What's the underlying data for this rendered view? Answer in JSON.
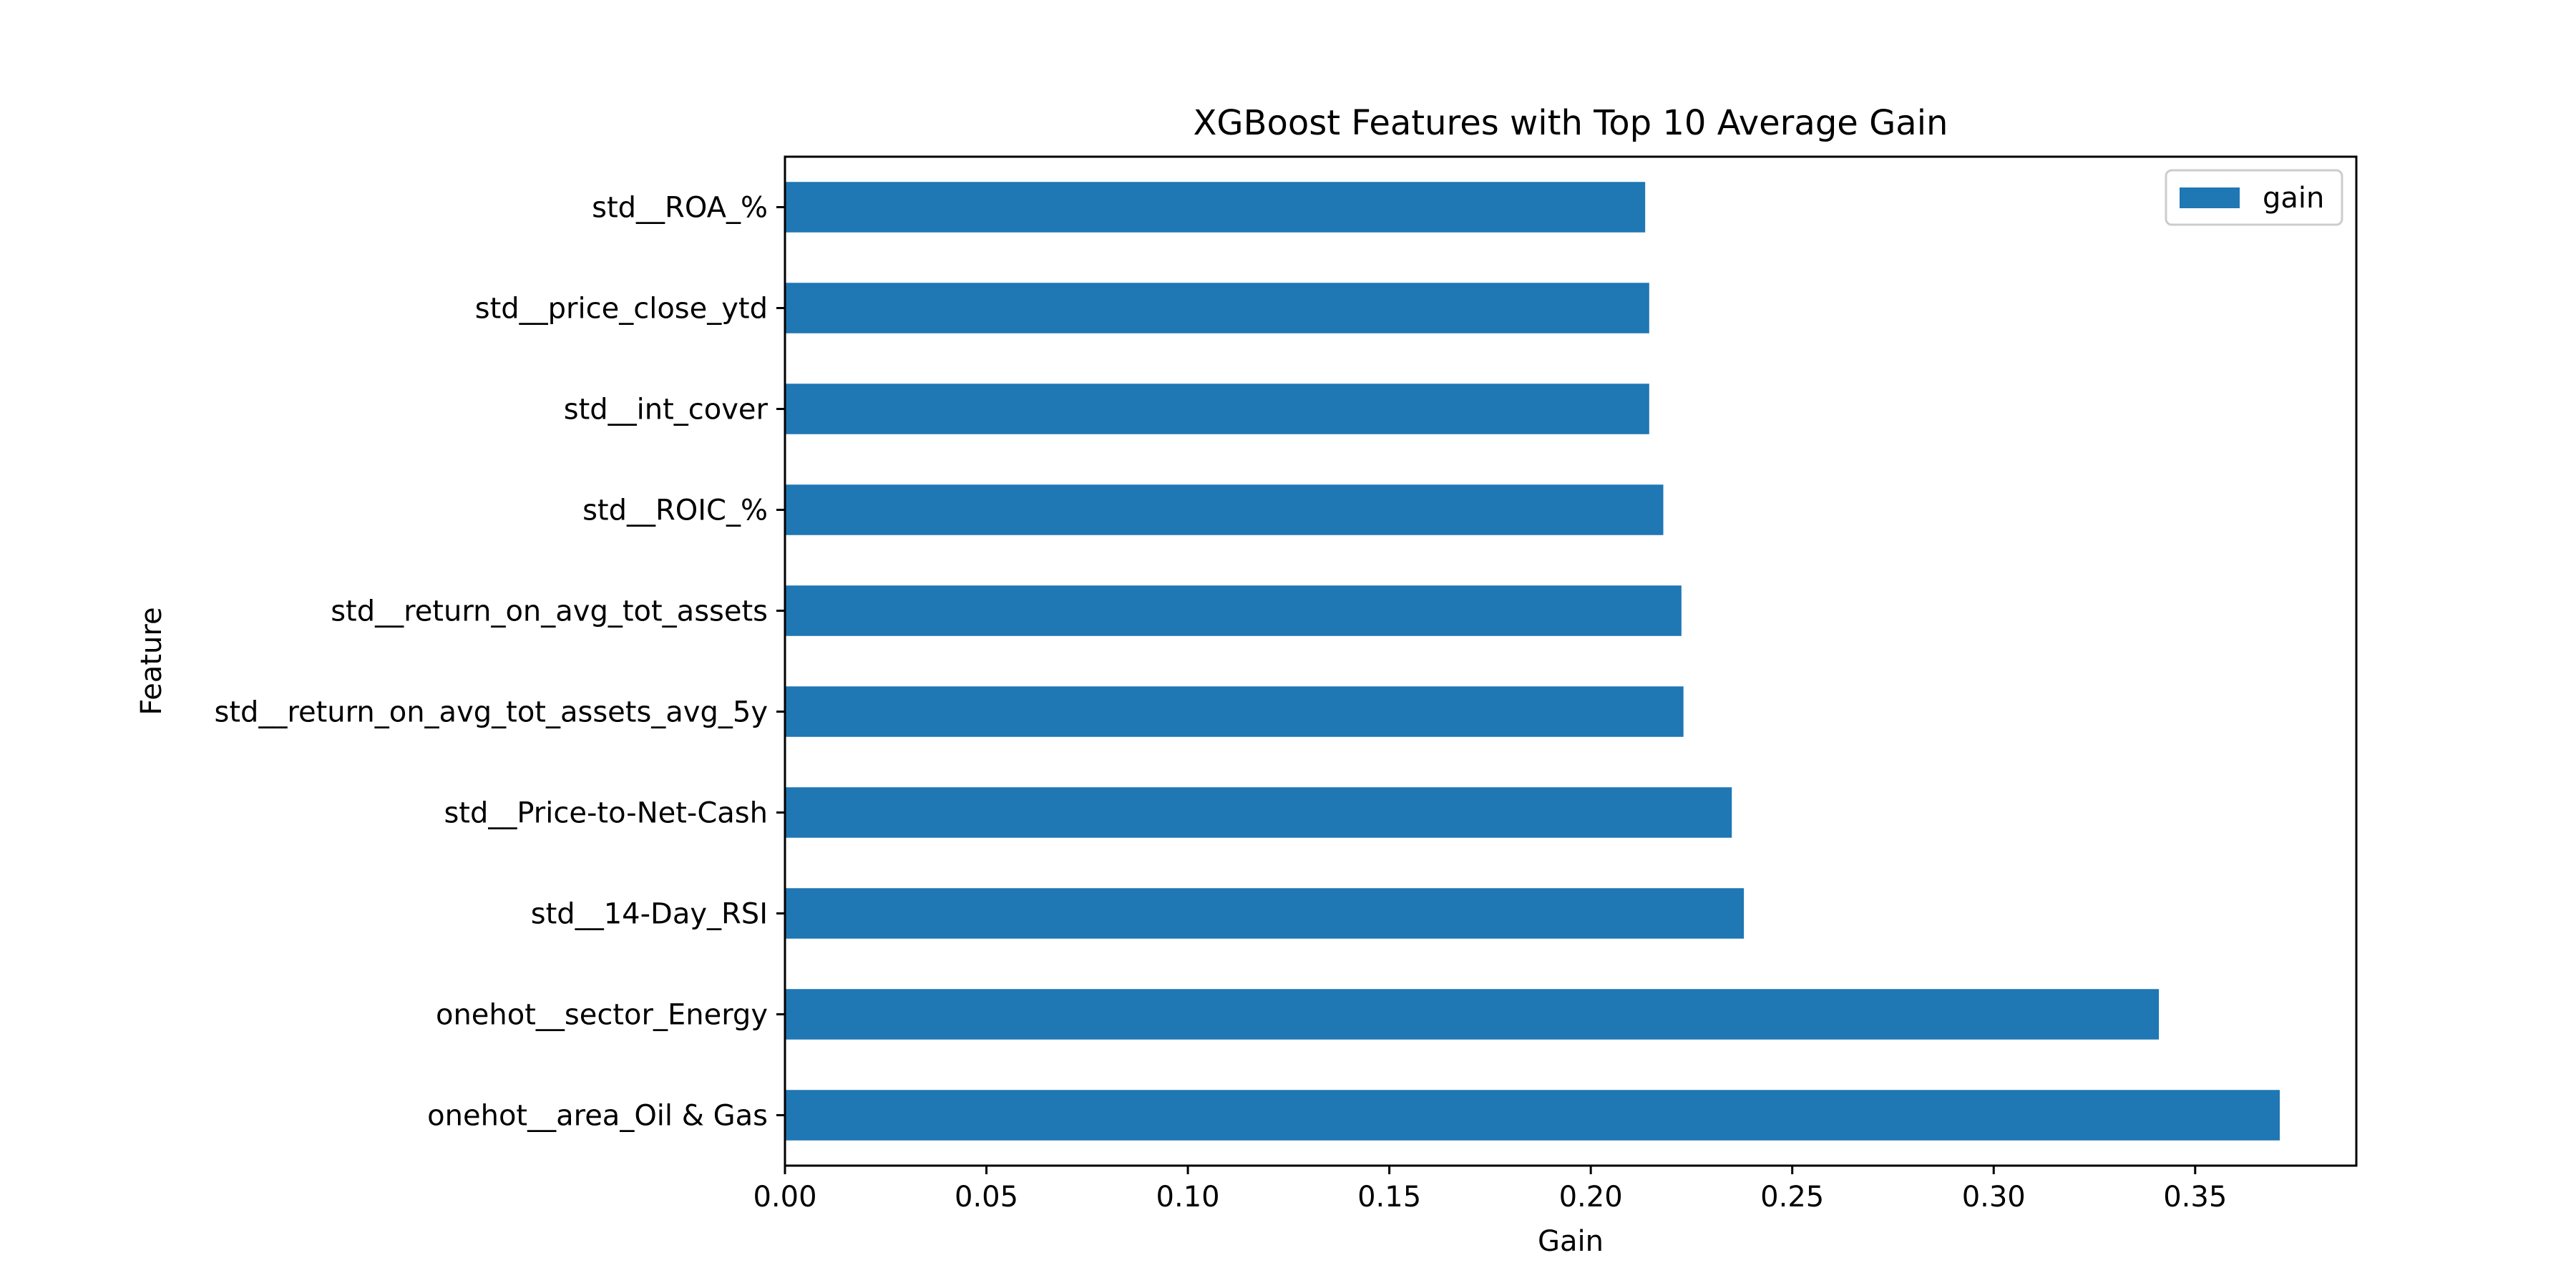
{
  "chart_data": {
    "type": "bar",
    "orientation": "horizontal",
    "title": "XGBoost Features with Top 10 Average Gain",
    "xlabel": "Gain",
    "ylabel": "Feature",
    "categories": [
      "onehot__area_Oil & Gas",
      "onehot__sector_Energy",
      "std__14-Day_RSI",
      "std__Price-to-Net-Cash",
      "std__return_on_avg_tot_assets_avg_5y",
      "std__return_on_avg_tot_assets",
      "std__ROIC_%",
      "std__int_cover",
      "std__price_close_ytd",
      "std__ROA_%"
    ],
    "series": [
      {
        "name": "gain",
        "color": "#1f77b4",
        "values": [
          0.371,
          0.341,
          0.238,
          0.235,
          0.223,
          0.2225,
          0.218,
          0.2145,
          0.2145,
          0.2135
        ]
      }
    ],
    "xlim": [
      0,
      0.39
    ],
    "xticks": [
      0.0,
      0.05,
      0.1,
      0.15,
      0.2,
      0.25,
      0.3,
      0.35
    ],
    "xtick_labels": [
      "0.00",
      "0.05",
      "0.10",
      "0.15",
      "0.20",
      "0.25",
      "0.30",
      "0.35"
    ],
    "grid": false,
    "legend": {
      "position": "top-right",
      "entries": [
        "gain"
      ]
    }
  }
}
